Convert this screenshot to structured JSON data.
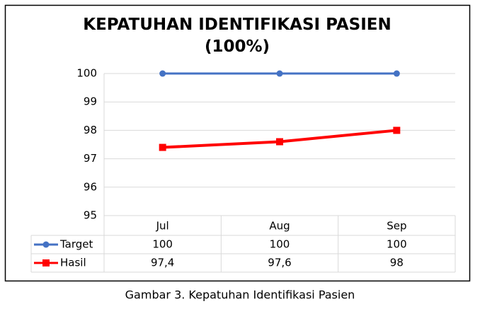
{
  "chart_data": {
    "type": "line",
    "title": "KEPATUHAN IDENTIFIKASI PASIEN (100%)",
    "categories": [
      "Jul",
      "Aug",
      "Sep"
    ],
    "series": [
      {
        "name": "Target",
        "color": "#4472c4",
        "marker": "circle",
        "values": [
          100,
          100,
          100
        ]
      },
      {
        "name": "Hasil",
        "color": "#ff0000",
        "marker": "square",
        "values": [
          97.4,
          97.6,
          98
        ],
        "value_labels": [
          "97,4",
          "97,6",
          "98"
        ]
      }
    ],
    "ylim": [
      95,
      100.25
    ],
    "yticks": [
      95,
      96,
      97,
      98,
      99,
      100
    ],
    "grid": true,
    "data_table": true
  },
  "caption": "Gambar 3. Kepatuhan Identifikasi Pasien"
}
